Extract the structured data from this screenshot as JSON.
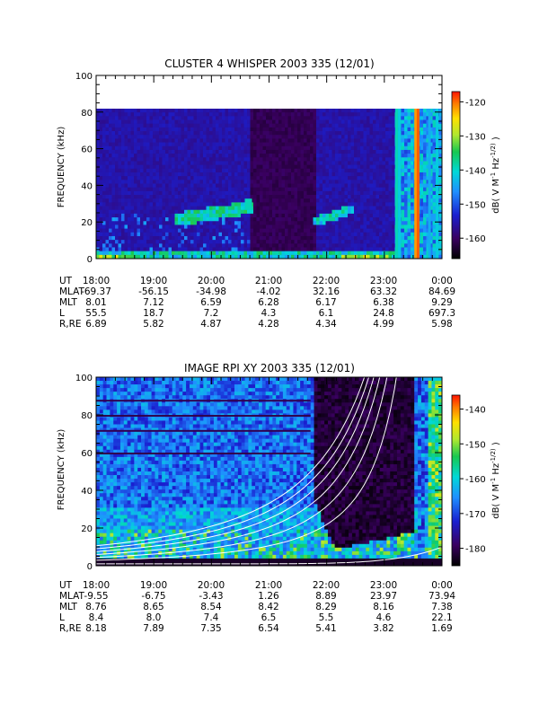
{
  "chart_data": [
    {
      "type": "heatmap",
      "title": "CLUSTER 4 WHISPER 2003 335 (12/01)",
      "ylabel": "FREQUENCY (kHz)",
      "ylim": [
        0,
        100
      ],
      "yticks": [
        "0",
        "20",
        "40",
        "60",
        "80",
        "100"
      ],
      "data_ylim": [
        0,
        80
      ],
      "xticks": [
        "18:00",
        "19:00",
        "20:00",
        "21:00",
        "22:00",
        "23:00",
        "0:00"
      ],
      "colorbar": {
        "label": "dB( V M^-1 Hz^-1/2 )",
        "range": [
          -166,
          -117
        ],
        "ticks": [
          "-120",
          "-130",
          "-140",
          "-150",
          "-160"
        ]
      },
      "ephemeris": [
        {
          "label": "UT",
          "values": [
            "18:00",
            "19:00",
            "20:00",
            "21:00",
            "22:00",
            "23:00",
            "0:00"
          ]
        },
        {
          "label": "MLAT",
          "values": [
            "-69.37",
            "-56.15",
            "-34.98",
            "-4.02",
            "32.16",
            "63.32",
            "84.69"
          ]
        },
        {
          "label": "MLT",
          "values": [
            "8.01",
            "7.12",
            "6.59",
            "6.28",
            "6.17",
            "6.38",
            "9.29"
          ]
        },
        {
          "label": "L",
          "values": [
            "55.5",
            "18.7",
            "7.2",
            "4.3",
            "6.1",
            "24.8",
            "697.3"
          ]
        },
        {
          "label": "R,RE",
          "values": [
            "6.89",
            "5.82",
            "4.87",
            "4.28",
            "4.34",
            "4.99",
            "5.98"
          ]
        }
      ]
    },
    {
      "type": "heatmap",
      "title": "IMAGE RPI XY 2003 335 (12/01)",
      "ylabel": "FREQUENCY (kHz)",
      "ylim": [
        0,
        100
      ],
      "yticks": [
        "0",
        "20",
        "40",
        "60",
        "80",
        "100"
      ],
      "xticks": [
        "18:00",
        "19:00",
        "20:00",
        "21:00",
        "22:00",
        "23:00",
        "0:00"
      ],
      "colorbar": {
        "label": "dB( V M^-1 Hz^-1/2 )",
        "range": [
          -185,
          -136
        ],
        "ticks": [
          "-140",
          "-150",
          "-160",
          "-170",
          "-180"
        ]
      },
      "ephemeris": [
        {
          "label": "UT",
          "values": [
            "18:00",
            "19:00",
            "20:00",
            "21:00",
            "22:00",
            "23:00",
            "0:00"
          ]
        },
        {
          "label": "MLAT",
          "values": [
            "-9.55",
            "-6.75",
            "-3.43",
            "1.26",
            "8.89",
            "23.97",
            "73.94"
          ]
        },
        {
          "label": "MLT",
          "values": [
            "8.76",
            "8.65",
            "8.54",
            "8.42",
            "8.29",
            "8.16",
            "7.38"
          ]
        },
        {
          "label": "L",
          "values": [
            "8.4",
            "8.0",
            "7.4",
            "6.5",
            "5.5",
            "4.6",
            "22.1"
          ]
        },
        {
          "label": "R,RE",
          "values": [
            "8.18",
            "7.89",
            "7.35",
            "6.54",
            "5.41",
            "3.82",
            "1.69"
          ]
        }
      ]
    }
  ]
}
